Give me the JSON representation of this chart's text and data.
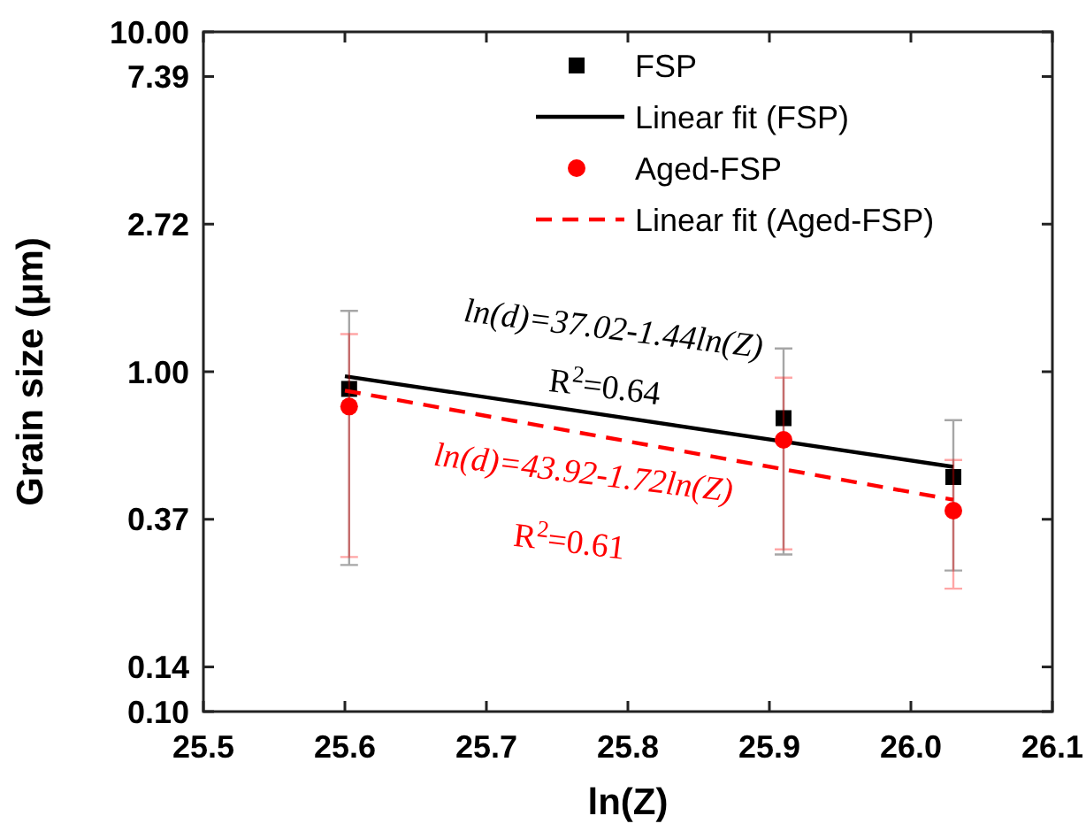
{
  "chart_data": {
    "type": "scatter",
    "xlabel": "ln(Z)",
    "ylabel": "Grain size (μm)",
    "log": "y",
    "xlim": [
      25.5,
      26.1
    ],
    "xticks": [
      25.5,
      25.6,
      25.7,
      25.8,
      25.9,
      {
        "value": 26,
        "label": "26.0"
      },
      26.1
    ],
    "ylim": [
      0.1,
      10
    ],
    "yticks": [
      {
        "value": 0.1,
        "label": "0.10"
      },
      {
        "value": 0.1353,
        "label": "0.14"
      },
      {
        "value": 0.3679,
        "label": "0.37"
      },
      {
        "value": 1,
        "label": "1.00"
      },
      {
        "value": 2.718,
        "label": "2.72"
      },
      {
        "value": 7.389,
        "label": "7.39"
      },
      {
        "value": 10,
        "label": "10.00"
      }
    ],
    "grid": false,
    "legend": "top right",
    "series": [
      {
        "name": "FSP",
        "marker": "square",
        "color": "#000000",
        "x": [
          25.603,
          25.91,
          26.03
        ],
        "values": [
          0.89,
          0.73,
          0.49
        ],
        "errors": [
          [
            0.27,
            1.51
          ],
          [
            0.29,
            1.17
          ],
          [
            0.26,
            0.72
          ]
        ]
      },
      {
        "name": "Linear fit (FSP)",
        "type": "line",
        "marker": "none",
        "line_style": "solid",
        "color": "#000000",
        "x": [
          25.6,
          26.03
        ],
        "values": [
          0.97,
          0.525
        ]
      },
      {
        "name": "Aged-FSP",
        "marker": "circle",
        "color": "#ff0000",
        "x": [
          25.603,
          25.91,
          26.03
        ],
        "values": [
          0.79,
          0.63,
          0.39
        ],
        "errors": [
          [
            0.285,
            1.29
          ],
          [
            0.3,
            0.96
          ],
          [
            0.23,
            0.55
          ]
        ]
      },
      {
        "name": "Linear fit (Aged-FSP)",
        "type": "line",
        "marker": "none",
        "line_style": "dashed",
        "color": "#ff0000",
        "x": [
          25.6,
          26.03
        ],
        "values": [
          0.88,
          0.42
        ]
      }
    ],
    "annotations": [
      "ln(d)=37.02-1.44ln(Z)",
      "R$^{2}$=0.64",
      "ln(d)=43.92-1.72ln(Z)",
      "R$^{2}$=0.61"
    ]
  }
}
